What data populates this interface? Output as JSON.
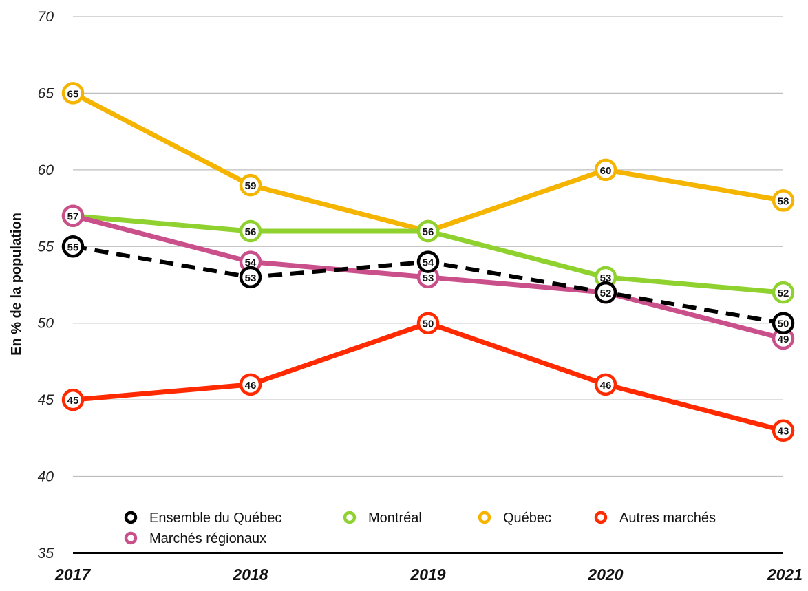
{
  "chart_data": {
    "type": "line",
    "title": "",
    "xlabel": "",
    "ylabel": "En % de la population",
    "categories": [
      "2017",
      "2018",
      "2019",
      "2020",
      "2021"
    ],
    "ylim": [
      35,
      70
    ],
    "yticks": [
      35,
      40,
      45,
      50,
      55,
      60,
      65,
      70
    ],
    "grid": true,
    "legend_position": "bottom",
    "series": [
      {
        "name": "Ensemble du Québec",
        "values": [
          55,
          53,
          54,
          52,
          50
        ],
        "color": "#000000",
        "dashed": true
      },
      {
        "name": "Montréal",
        "values": [
          57,
          56,
          56,
          53,
          52
        ],
        "color": "#8fd12e",
        "dashed": false
      },
      {
        "name": "Québec",
        "values": [
          65,
          59,
          56,
          60,
          58
        ],
        "color": "#f5b400",
        "dashed": false
      },
      {
        "name": "Autres marchés",
        "values": [
          45,
          46,
          50,
          46,
          43
        ],
        "color": "#ff2a00",
        "dashed": false
      },
      {
        "name": "Marchés régionaux",
        "values": [
          57,
          54,
          53,
          52,
          49
        ],
        "color": "#c9508b",
        "dashed": false
      }
    ]
  }
}
